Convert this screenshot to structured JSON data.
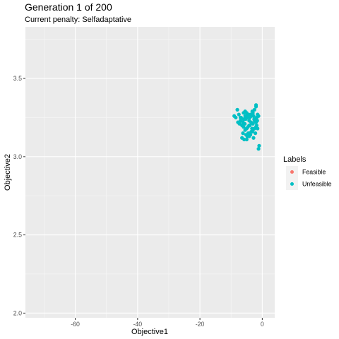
{
  "chart_data": {
    "type": "scatter",
    "title": "Generation 1 of 200",
    "subtitle": "Current penalty: Selfadaptative",
    "xlabel": "Objective1",
    "ylabel": "Objective2",
    "xlim": [
      -76,
      4
    ],
    "ylim": [
      1.97,
      3.83
    ],
    "x_ticks": [
      -60,
      -40,
      -20,
      0
    ],
    "y_ticks": [
      2.0,
      2.5,
      3.0,
      3.5
    ],
    "x_tick_labels": [
      "-60",
      "-40",
      "-20",
      "0"
    ],
    "y_tick_labels": [
      "2.0",
      "2.5",
      "3.0",
      "3.5"
    ],
    "grid": true,
    "legend": {
      "title": "Labels",
      "position": "right",
      "entries": [
        {
          "label": "Feasible",
          "color": "#F8766D"
        },
        {
          "label": "Unfeasible",
          "color": "#00BFC4"
        }
      ]
    },
    "series": [
      {
        "name": "Feasible",
        "color": "#F8766D",
        "x": [],
        "y": []
      },
      {
        "name": "Unfeasible",
        "color": "#00BFC4",
        "x": [
          -8.0,
          -7.5,
          -6.8,
          -6.0,
          -5.5,
          -5.0,
          -4.5,
          -4.0,
          -3.5,
          -3.0,
          -2.5,
          -2.0,
          -1.5,
          -8.5,
          -7.0,
          -6.2,
          -5.8,
          -5.2,
          -4.8,
          -4.2,
          -3.8,
          -3.2,
          -2.8,
          -2.2,
          -1.8,
          -1.2,
          -7.8,
          -6.5,
          -5.6,
          -4.6,
          -3.6,
          -2.6,
          -1.6,
          -6.0,
          -5.0,
          -4.0,
          -3.0,
          -2.0,
          -5.5,
          -4.5,
          -3.5,
          -2.5,
          -6.2,
          -5.2,
          -4.2,
          -3.2,
          -2.2,
          -6.5,
          -5.8,
          -4.8,
          -3.8,
          -2.8,
          -5.0,
          -4.0,
          -3.0,
          -2.0,
          -2.5,
          -5.5,
          -4.2,
          -7.3,
          -9.0,
          -6.0,
          -1.8,
          -1.5,
          -2.0,
          -1.0,
          -1.2,
          -7.0,
          -5.3,
          -3.3
        ],
        "y": [
          3.3,
          3.27,
          3.25,
          3.24,
          3.26,
          3.28,
          3.27,
          3.25,
          3.26,
          3.28,
          3.3,
          3.32,
          3.27,
          3.25,
          3.23,
          3.22,
          3.24,
          3.26,
          3.25,
          3.23,
          3.27,
          3.29,
          3.26,
          3.24,
          3.25,
          3.26,
          3.22,
          3.2,
          3.21,
          3.19,
          3.22,
          3.24,
          3.23,
          3.19,
          3.18,
          3.2,
          3.21,
          3.22,
          3.17,
          3.15,
          3.16,
          3.18,
          3.15,
          3.14,
          3.13,
          3.16,
          3.15,
          3.12,
          3.11,
          3.13,
          3.14,
          3.12,
          3.11,
          3.15,
          3.17,
          3.19,
          3.23,
          3.29,
          3.2,
          3.21,
          3.26,
          3.28,
          3.2,
          3.18,
          3.33,
          3.07,
          3.05,
          3.25,
          3.24,
          3.18
        ]
      }
    ]
  }
}
